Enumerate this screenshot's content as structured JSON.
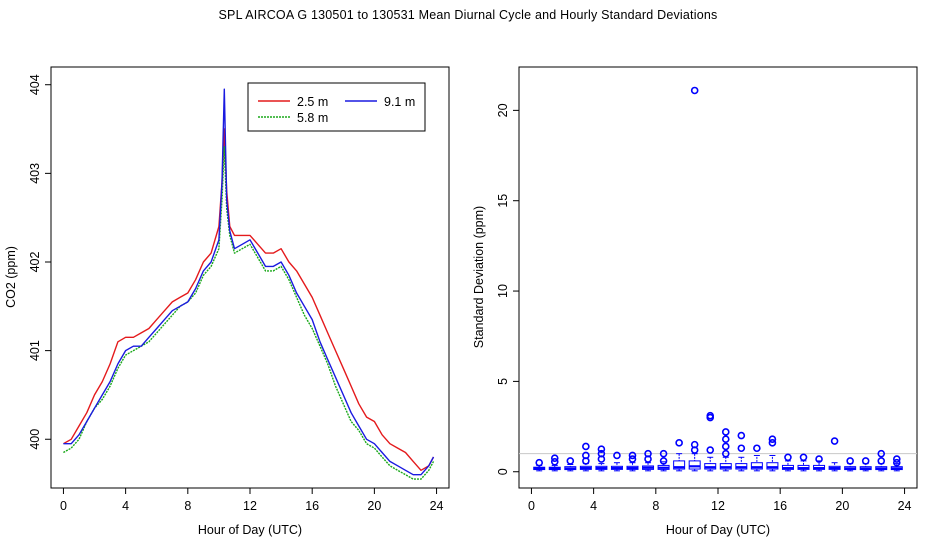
{
  "title": "SPL   AIRCOA G   130501 to 130531   Mean Diurnal Cycle and Hourly Standard Deviations",
  "colors": {
    "s25": "#e41a1c",
    "s58": "#1aa81a",
    "s91": "#1a1ae0",
    "box": "#0000ff"
  },
  "chart_data": [
    {
      "type": "line",
      "title": "",
      "xlabel": "Hour of Day (UTC)",
      "ylabel": "CO2 (ppm)",
      "xlim": [
        -0.8,
        24.8
      ],
      "ylim": [
        399.45,
        404.2
      ],
      "xticks": [
        0,
        4,
        8,
        12,
        16,
        20,
        24
      ],
      "yticks": [
        400,
        401,
        402,
        403,
        404
      ],
      "legend": {
        "placement": "top-right",
        "entries": [
          "2.5 m",
          "5.8 m",
          "9.1 m"
        ]
      },
      "series": [
        {
          "name": "2.5 m",
          "color": "#e41a1c",
          "x": [
            0,
            0.5,
            1,
            1.5,
            2,
            2.5,
            3,
            3.5,
            4,
            4.5,
            5,
            5.5,
            6,
            6.5,
            7,
            7.5,
            8,
            8.5,
            9,
            9.5,
            10,
            10.2,
            10.35,
            10.5,
            10.7,
            11,
            11.5,
            12,
            12.5,
            13,
            13.5,
            14,
            14.5,
            15,
            15.5,
            16,
            16.5,
            17,
            17.5,
            18,
            18.5,
            19,
            19.5,
            20,
            20.5,
            21,
            21.5,
            22,
            22.5,
            23,
            23.5,
            23.8
          ],
          "values": [
            399.95,
            400.0,
            400.15,
            400.3,
            400.5,
            400.65,
            400.85,
            401.1,
            401.15,
            401.15,
            401.2,
            401.25,
            401.35,
            401.45,
            401.55,
            401.6,
            401.65,
            401.8,
            402.0,
            402.1,
            402.4,
            402.9,
            403.5,
            402.8,
            402.4,
            402.3,
            402.3,
            402.3,
            402.2,
            402.1,
            402.1,
            402.15,
            402.0,
            401.9,
            401.75,
            401.6,
            401.4,
            401.2,
            401.0,
            400.8,
            400.6,
            400.4,
            400.25,
            400.2,
            400.05,
            399.95,
            399.9,
            399.85,
            399.75,
            399.65,
            399.7,
            399.8
          ]
        },
        {
          "name": "5.8 m",
          "color": "#1aa81a",
          "x": [
            0,
            0.5,
            1,
            1.5,
            2,
            2.5,
            3,
            3.5,
            4,
            4.5,
            5,
            5.5,
            6,
            6.5,
            7,
            7.5,
            8,
            8.5,
            9,
            9.5,
            10,
            10.2,
            10.35,
            10.5,
            10.7,
            11,
            11.5,
            12,
            12.5,
            13,
            13.5,
            14,
            14.5,
            15,
            15.5,
            16,
            16.5,
            17,
            17.5,
            18,
            18.5,
            19,
            19.5,
            20,
            20.5,
            21,
            21.5,
            22,
            22.5,
            23,
            23.5,
            23.8
          ],
          "values": [
            399.85,
            399.9,
            400.0,
            400.2,
            400.35,
            400.45,
            400.6,
            400.8,
            400.95,
            401.0,
            401.05,
            401.1,
            401.2,
            401.3,
            401.4,
            401.5,
            401.55,
            401.65,
            401.85,
            401.95,
            402.15,
            402.7,
            403.3,
            402.6,
            402.3,
            402.1,
            402.15,
            402.2,
            402.05,
            401.9,
            401.9,
            401.95,
            401.8,
            401.6,
            401.4,
            401.25,
            401.05,
            400.85,
            400.6,
            400.4,
            400.2,
            400.1,
            399.95,
            399.9,
            399.8,
            399.7,
            399.65,
            399.6,
            399.55,
            399.55,
            399.65,
            399.75
          ]
        },
        {
          "name": "9.1 m",
          "color": "#1a1ae0",
          "x": [
            0,
            0.5,
            1,
            1.5,
            2,
            2.5,
            3,
            3.5,
            4,
            4.5,
            5,
            5.5,
            6,
            6.5,
            7,
            7.5,
            8,
            8.5,
            9,
            9.5,
            10,
            10.2,
            10.35,
            10.5,
            10.7,
            11,
            11.5,
            12,
            12.5,
            13,
            13.5,
            14,
            14.5,
            15,
            15.5,
            16,
            16.5,
            17,
            17.5,
            18,
            18.5,
            19,
            19.5,
            20,
            20.5,
            21,
            21.5,
            22,
            22.5,
            23,
            23.5,
            23.8
          ],
          "values": [
            399.95,
            399.95,
            400.05,
            400.2,
            400.35,
            400.5,
            400.65,
            400.85,
            401.0,
            401.05,
            401.05,
            401.15,
            401.25,
            401.35,
            401.45,
            401.5,
            401.55,
            401.7,
            401.9,
            402.0,
            402.25,
            402.9,
            403.95,
            402.7,
            402.35,
            402.15,
            402.2,
            402.25,
            402.1,
            401.95,
            401.95,
            402.0,
            401.85,
            401.65,
            401.5,
            401.35,
            401.1,
            400.9,
            400.7,
            400.5,
            400.3,
            400.15,
            400.0,
            399.95,
            399.85,
            399.75,
            399.7,
            399.65,
            399.6,
            399.6,
            399.7,
            399.8
          ]
        }
      ]
    },
    {
      "type": "box",
      "title": "",
      "xlabel": "Hour of Day (UTC)",
      "ylabel": "Standard Deviation (ppm)",
      "xlim": [
        -0.8,
        24.8
      ],
      "ylim": [
        -0.9,
        22.4
      ],
      "xticks": [
        0,
        4,
        8,
        12,
        16,
        20,
        24
      ],
      "yticks": [
        0,
        5,
        10,
        15,
        20
      ],
      "hline": 1.0,
      "boxes": [
        {
          "x": 0.5,
          "q1": 0.12,
          "med": 0.18,
          "q3": 0.25,
          "wlo": 0.05,
          "whi": 0.35,
          "out": [
            0.5
          ]
        },
        {
          "x": 1.5,
          "q1": 0.12,
          "med": 0.18,
          "q3": 0.25,
          "wlo": 0.05,
          "whi": 0.35,
          "out": [
            0.55,
            0.75
          ]
        },
        {
          "x": 2.5,
          "q1": 0.12,
          "med": 0.18,
          "q3": 0.28,
          "wlo": 0.05,
          "whi": 0.4,
          "out": [
            0.6
          ]
        },
        {
          "x": 3.5,
          "q1": 0.13,
          "med": 0.2,
          "q3": 0.3,
          "wlo": 0.05,
          "whi": 0.45,
          "out": [
            0.6,
            0.9,
            1.4
          ]
        },
        {
          "x": 4.5,
          "q1": 0.13,
          "med": 0.2,
          "q3": 0.3,
          "wlo": 0.05,
          "whi": 0.45,
          "out": [
            0.7,
            1.0,
            1.25
          ]
        },
        {
          "x": 5.5,
          "q1": 0.13,
          "med": 0.2,
          "q3": 0.3,
          "wlo": 0.05,
          "whi": 0.5,
          "out": [
            0.9
          ]
        },
        {
          "x": 6.5,
          "q1": 0.13,
          "med": 0.2,
          "q3": 0.3,
          "wlo": 0.05,
          "whi": 0.5,
          "out": [
            0.7,
            0.9
          ]
        },
        {
          "x": 7.5,
          "q1": 0.13,
          "med": 0.22,
          "q3": 0.32,
          "wlo": 0.05,
          "whi": 0.5,
          "out": [
            0.7,
            1.0
          ]
        },
        {
          "x": 8.5,
          "q1": 0.13,
          "med": 0.22,
          "q3": 0.35,
          "wlo": 0.05,
          "whi": 0.55,
          "out": [
            0.6,
            1.0
          ]
        },
        {
          "x": 9.5,
          "q1": 0.15,
          "med": 0.25,
          "q3": 0.6,
          "wlo": 0.05,
          "whi": 1.0,
          "out": [
            1.6
          ]
        },
        {
          "x": 10.5,
          "q1": 0.15,
          "med": 0.3,
          "q3": 0.6,
          "wlo": 0.05,
          "whi": 1.0,
          "out": [
            1.2,
            1.5,
            21.1
          ]
        },
        {
          "x": 11.5,
          "q1": 0.15,
          "med": 0.25,
          "q3": 0.45,
          "wlo": 0.05,
          "whi": 0.8,
          "out": [
            1.2,
            3.0,
            3.1
          ]
        },
        {
          "x": 12.5,
          "q1": 0.15,
          "med": 0.25,
          "q3": 0.45,
          "wlo": 0.05,
          "whi": 0.8,
          "out": [
            1.0,
            1.4,
            1.8,
            2.2
          ]
        },
        {
          "x": 13.5,
          "q1": 0.15,
          "med": 0.25,
          "q3": 0.45,
          "wlo": 0.05,
          "whi": 0.8,
          "out": [
            1.3,
            2.0
          ]
        },
        {
          "x": 14.5,
          "q1": 0.15,
          "med": 0.25,
          "q3": 0.5,
          "wlo": 0.05,
          "whi": 0.9,
          "out": [
            1.3
          ]
        },
        {
          "x": 15.5,
          "q1": 0.15,
          "med": 0.25,
          "q3": 0.5,
          "wlo": 0.05,
          "whi": 0.9,
          "out": [
            1.6,
            1.8
          ]
        },
        {
          "x": 16.5,
          "q1": 0.13,
          "med": 0.2,
          "q3": 0.35,
          "wlo": 0.05,
          "whi": 0.6,
          "out": [
            0.8
          ]
        },
        {
          "x": 17.5,
          "q1": 0.13,
          "med": 0.2,
          "q3": 0.35,
          "wlo": 0.05,
          "whi": 0.6,
          "out": [
            0.8
          ]
        },
        {
          "x": 18.5,
          "q1": 0.13,
          "med": 0.2,
          "q3": 0.35,
          "wlo": 0.05,
          "whi": 0.6,
          "out": [
            0.7
          ]
        },
        {
          "x": 19.5,
          "q1": 0.13,
          "med": 0.2,
          "q3": 0.3,
          "wlo": 0.05,
          "whi": 0.5,
          "out": [
            1.7
          ]
        },
        {
          "x": 20.5,
          "q1": 0.12,
          "med": 0.18,
          "q3": 0.28,
          "wlo": 0.05,
          "whi": 0.45,
          "out": [
            0.6
          ]
        },
        {
          "x": 21.5,
          "q1": 0.12,
          "med": 0.18,
          "q3": 0.28,
          "wlo": 0.05,
          "whi": 0.45,
          "out": [
            0.6
          ]
        },
        {
          "x": 22.5,
          "q1": 0.12,
          "med": 0.18,
          "q3": 0.28,
          "wlo": 0.05,
          "whi": 0.45,
          "out": [
            0.6,
            1.0
          ]
        },
        {
          "x": 23.5,
          "q1": 0.12,
          "med": 0.18,
          "q3": 0.28,
          "wlo": 0.05,
          "whi": 0.45,
          "out": [
            0.5,
            0.7
          ]
        }
      ]
    }
  ]
}
